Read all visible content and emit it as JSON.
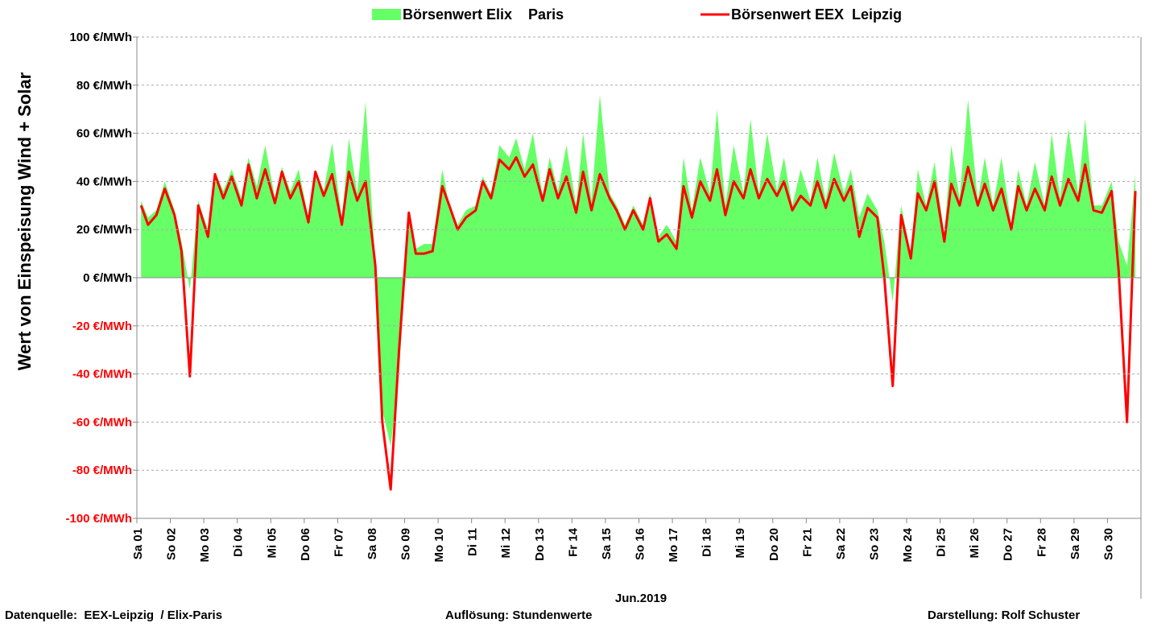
{
  "chart_data": {
    "type": "area_line",
    "ylabel": "Wert von Einspeisung Wind + Solar",
    "xlabel": "Jun.2019",
    "footer": [
      "Datenquelle:  EEX-Leipzig  / Elix-Paris",
      "Auflösung: Stundenwerte",
      "Darstellung: Rolf Schuster"
    ],
    "xlim": [
      0,
      720
    ],
    "xticks": [
      {
        "value": 0,
        "label": "Sa 01"
      },
      {
        "value": 24,
        "label": "So 02"
      },
      {
        "value": 48,
        "label": "Mo 03"
      },
      {
        "value": 72,
        "label": "Di 04"
      },
      {
        "value": 96,
        "label": "Mi 05"
      },
      {
        "value": 120,
        "label": "Do 06"
      },
      {
        "value": 144,
        "label": "Fr 07"
      },
      {
        "value": 168,
        "label": "Sa 08"
      },
      {
        "value": 192,
        "label": "So 09"
      },
      {
        "value": 216,
        "label": "Mo 10"
      },
      {
        "value": 240,
        "label": "Di 11"
      },
      {
        "value": 264,
        "label": "Mi 12"
      },
      {
        "value": 288,
        "label": "Do 13"
      },
      {
        "value": 312,
        "label": "Fr 14"
      },
      {
        "value": 336,
        "label": "Sa 15"
      },
      {
        "value": 360,
        "label": "So 16"
      },
      {
        "value": 384,
        "label": "Mo 17"
      },
      {
        "value": 408,
        "label": "Di 18"
      },
      {
        "value": 432,
        "label": "Mi 19"
      },
      {
        "value": 456,
        "label": "Do 20"
      },
      {
        "value": 480,
        "label": "Fr 21"
      },
      {
        "value": 504,
        "label": "Sa 22"
      },
      {
        "value": 528,
        "label": "So 23"
      },
      {
        "value": 552,
        "label": "Mo 24"
      },
      {
        "value": 576,
        "label": "Di 25"
      },
      {
        "value": 600,
        "label": "Mi 26"
      },
      {
        "value": 624,
        "label": "Do 27"
      },
      {
        "value": 648,
        "label": "Fr 28"
      },
      {
        "value": 672,
        "label": "Sa 29"
      },
      {
        "value": 696,
        "label": "So 30"
      }
    ],
    "ylim": [
      -100,
      100
    ],
    "yticks": [
      {
        "value": 100,
        "label": "100 €/MWh"
      },
      {
        "value": 80,
        "label": "80 €/MWh"
      },
      {
        "value": 60,
        "label": "60 €/MWh"
      },
      {
        "value": 40,
        "label": "40 €/MWh"
      },
      {
        "value": 20,
        "label": "20 €/MWh"
      },
      {
        "value": 0,
        "label": "0 €/MWh"
      },
      {
        "value": -20,
        "label": "-20 €/MWh"
      },
      {
        "value": -40,
        "label": "-40 €/MWh"
      },
      {
        "value": -60,
        "label": "-60 €/MWh"
      },
      {
        "value": -80,
        "label": "-80 €/MWh"
      },
      {
        "value": -100,
        "label": "-100 €/MWh"
      }
    ],
    "negative_tick_color": "#ff0000",
    "grid": true,
    "x": [
      3,
      8,
      14,
      20,
      27,
      32,
      38,
      44,
      51,
      56,
      62,
      68,
      75,
      80,
      86,
      92,
      99,
      104,
      110,
      116,
      123,
      128,
      134,
      140,
      147,
      152,
      158,
      164,
      171,
      176,
      182,
      188,
      195,
      200,
      206,
      212,
      219,
      224,
      230,
      236,
      243,
      248,
      254,
      260,
      267,
      272,
      278,
      284,
      291,
      296,
      302,
      308,
      315,
      320,
      326,
      332,
      339,
      344,
      350,
      356,
      363,
      368,
      374,
      380,
      387,
      392,
      398,
      404,
      411,
      416,
      422,
      428,
      435,
      440,
      446,
      452,
      459,
      464,
      470,
      476,
      483,
      488,
      494,
      500,
      507,
      512,
      518,
      524,
      531,
      536,
      542,
      548,
      555,
      560,
      566,
      572,
      579,
      584,
      590,
      596,
      603,
      608,
      614,
      620,
      627,
      632,
      638,
      644,
      651,
      656,
      662,
      668,
      675,
      680,
      686,
      692,
      699,
      704,
      710,
      716
    ],
    "series": [
      {
        "name": "Börsenwert Elix    Paris",
        "color": "#66ff66",
        "kind": "area",
        "values": [
          32,
          25,
          28,
          40,
          28,
          15,
          -5,
          32,
          20,
          44,
          36,
          45,
          33,
          50,
          38,
          55,
          33,
          46,
          36,
          45,
          25,
          45,
          36,
          56,
          24,
          58,
          35,
          73,
          5,
          -55,
          -70,
          -40,
          25,
          12,
          14,
          14,
          45,
          30,
          22,
          28,
          30,
          42,
          35,
          55,
          50,
          58,
          45,
          60,
          34,
          50,
          36,
          55,
          30,
          60,
          32,
          76,
          35,
          30,
          22,
          30,
          22,
          35,
          17,
          22,
          15,
          50,
          28,
          50,
          35,
          70,
          30,
          55,
          35,
          66,
          35,
          60,
          36,
          50,
          30,
          45,
          32,
          50,
          32,
          52,
          35,
          45,
          25,
          35,
          28,
          15,
          -10,
          30,
          10,
          45,
          30,
          48,
          18,
          55,
          33,
          74,
          32,
          50,
          30,
          50,
          22,
          45,
          30,
          48,
          30,
          60,
          33,
          62,
          35,
          66,
          30,
          30,
          40,
          15,
          5,
          43
        ]
      },
      {
        "name": "Börsenwert EEX  Leipzig",
        "color": "#ff0000",
        "kind": "line",
        "values": [
          30,
          22,
          26,
          37,
          26,
          11,
          -41,
          30,
          17,
          43,
          33,
          42,
          30,
          47,
          33,
          45,
          31,
          44,
          33,
          40,
          23,
          44,
          34,
          43,
          22,
          44,
          32,
          40,
          5,
          -60,
          -88,
          -30,
          27,
          10,
          10,
          11,
          38,
          30,
          20,
          25,
          28,
          40,
          33,
          49,
          45,
          50,
          42,
          47,
          32,
          45,
          33,
          42,
          27,
          44,
          28,
          43,
          33,
          28,
          20,
          28,
          20,
          33,
          15,
          18,
          12,
          38,
          25,
          40,
          32,
          45,
          26,
          40,
          33,
          45,
          33,
          41,
          34,
          40,
          28,
          34,
          30,
          40,
          29,
          41,
          32,
          38,
          17,
          29,
          25,
          0,
          -45,
          26,
          8,
          35,
          28,
          40,
          15,
          39,
          30,
          46,
          30,
          39,
          28,
          37,
          20,
          38,
          28,
          37,
          28,
          42,
          30,
          41,
          32,
          47,
          28,
          27,
          36,
          3,
          -60,
          36
        ]
      }
    ]
  }
}
